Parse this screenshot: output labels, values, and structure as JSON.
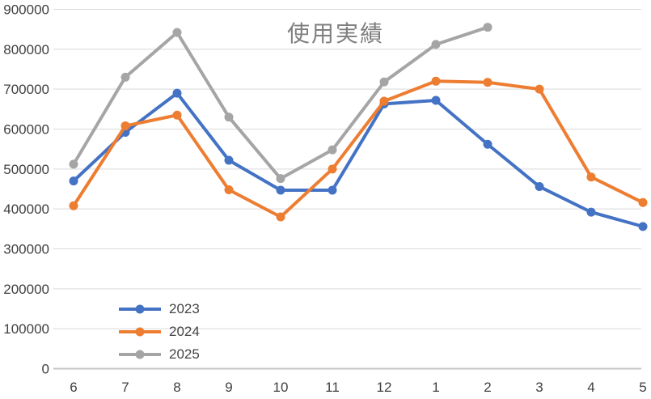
{
  "chart_data": {
    "type": "line",
    "title": "使用実績",
    "categories": [
      "6",
      "7",
      "8",
      "9",
      "10",
      "11",
      "12",
      "1",
      "2",
      "3",
      "4",
      "5"
    ],
    "series": [
      {
        "name": "2023",
        "color": "#4472C4",
        "values": [
          470000,
          592000,
          690000,
          522000,
          447000,
          447000,
          663000,
          672000,
          562000,
          456000,
          392000,
          356000
        ]
      },
      {
        "name": "2024",
        "color": "#ED7D31",
        "values": [
          408000,
          608000,
          635000,
          448000,
          380000,
          500000,
          670000,
          720000,
          717000,
          700000,
          480000,
          416000
        ]
      },
      {
        "name": "2025",
        "color": "#A5A5A5",
        "values": [
          512000,
          730000,
          842000,
          630000,
          476000,
          548000,
          718000,
          812000,
          855000,
          null,
          null,
          null
        ]
      }
    ],
    "y_axis": {
      "min": 0,
      "max": 900000,
      "step": 100000,
      "tick_labels": [
        "0",
        "100000",
        "200000",
        "300000",
        "400000",
        "500000",
        "600000",
        "700000",
        "800000",
        "900000"
      ]
    },
    "x_axis": {
      "tick_labels": [
        "6",
        "7",
        "8",
        "9",
        "10",
        "11",
        "12",
        "1",
        "2",
        "3",
        "4",
        "5"
      ]
    },
    "legend": {
      "position": "inside-bottom-left",
      "entries": [
        "2023",
        "2024",
        "2025"
      ]
    },
    "grid": true,
    "colors": {
      "background": "#ffffff",
      "gridline": "#D9D9D9",
      "axis_line": "#C6C6C6",
      "tick_text": "#404040",
      "title_text": "#7F7F7F"
    }
  }
}
